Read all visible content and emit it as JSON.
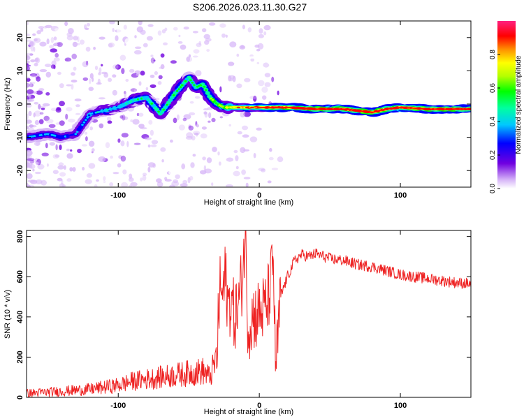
{
  "title": "S206.2026.023.11.30.G27",
  "colors": {
    "snr_line": "#ee2222",
    "spectrum_ridge": "#00c8c8",
    "noise": "#6a00e0"
  },
  "chart_data": [
    {
      "id": "spectrogram",
      "type": "heatmap",
      "xlabel": "Height of straight line (km)",
      "ylabel": "Frequency (Hz)",
      "xlim": [
        -165,
        150
      ],
      "ylim": [
        -25,
        25
      ],
      "xticks": [
        -100,
        0,
        100
      ],
      "yticks": [
        -20,
        -10,
        0,
        10,
        20
      ],
      "colorbar": {
        "label": "Normalized spectral amplitude",
        "range": [
          0,
          1
        ],
        "ticks": [
          "0.0",
          "0.2",
          "0.4",
          "0.6",
          "0.8"
        ],
        "colormap": "rainbow (white-purple-blue-cyan-green-yellow-orange-red-magenta)"
      },
      "ridge": {
        "x": [
          -165,
          -150,
          -140,
          -130,
          -120,
          -110,
          -100,
          -90,
          -80,
          -70,
          -60,
          -50,
          -45,
          -40,
          -35,
          -30,
          -25,
          -20,
          -10,
          0,
          10,
          20,
          40,
          60,
          80,
          90,
          100,
          120,
          150
        ],
        "y": [
          -10,
          -9,
          -10,
          -9,
          -3,
          -2,
          -1,
          1,
          2,
          -3,
          3,
          8,
          5,
          6,
          2,
          0,
          -1,
          -1,
          -1,
          -1,
          -1,
          -1,
          -1.5,
          -1.5,
          -2.5,
          -1.5,
          -1,
          -1.5,
          -1.5
        ],
        "amplitude": [
          0.3,
          0.35,
          0.3,
          0.3,
          0.35,
          0.4,
          0.4,
          0.45,
          0.45,
          0.45,
          0.5,
          0.45,
          0.5,
          0.5,
          0.55,
          0.6,
          0.6,
          0.7,
          0.8,
          0.85,
          0.9,
          0.9,
          0.95,
          0.95,
          0.95,
          0.9,
          0.95,
          0.95,
          0.95
        ]
      }
    },
    {
      "id": "snr",
      "type": "line",
      "xlabel": "Height of straight line (km)",
      "ylabel": "SNR (10 * v/v)",
      "xlim": [
        -165,
        150
      ],
      "ylim": [
        0,
        830
      ],
      "xticks": [
        -100,
        0,
        100
      ],
      "yticks": [
        0,
        200,
        400,
        600,
        800
      ],
      "series": [
        {
          "name": "SNR",
          "x": [
            -165,
            -140,
            -120,
            -100,
            -90,
            -80,
            -70,
            -60,
            -50,
            -40,
            -35,
            -30,
            -28,
            -26,
            -24,
            -22,
            -20,
            -18,
            -15,
            -12,
            -10,
            -8,
            -5,
            0,
            5,
            8,
            10,
            11,
            12,
            15,
            20,
            25,
            30,
            35,
            40,
            50,
            60,
            70,
            80,
            90,
            100,
            110,
            120,
            130,
            140,
            150
          ],
          "y": [
            20,
            30,
            40,
            60,
            80,
            90,
            100,
            110,
            120,
            130,
            100,
            200,
            550,
            500,
            600,
            450,
            500,
            400,
            450,
            600,
            820,
            350,
            400,
            420,
            450,
            560,
            700,
            300,
            150,
            500,
            600,
            680,
            710,
            700,
            715,
            690,
            680,
            660,
            650,
            630,
            610,
            600,
            590,
            580,
            570,
            565
          ]
        }
      ]
    }
  ]
}
